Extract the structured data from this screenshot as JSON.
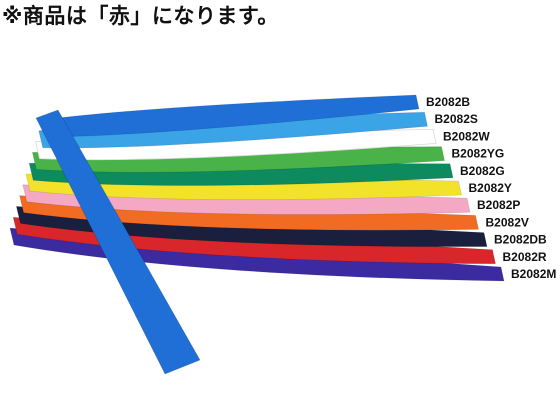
{
  "notice": "※商品は「赤」になります。",
  "bands": [
    {
      "code": "B2082B",
      "color": "#1f6fd6"
    },
    {
      "code": "B2082S",
      "color": "#3aa4e6"
    },
    {
      "code": "B2082W",
      "color": "#ffffff"
    },
    {
      "code": "B2082YG",
      "color": "#49b34a"
    },
    {
      "code": "B2082G",
      "color": "#0d8a5e"
    },
    {
      "code": "B2082Y",
      "color": "#f2e32a"
    },
    {
      "code": "B2082P",
      "color": "#f4a8c4"
    },
    {
      "code": "B2082V",
      "color": "#f26b22"
    },
    {
      "code": "B2082DB",
      "color": "#1a1f3d"
    },
    {
      "code": "B2082R",
      "color": "#d8262a"
    },
    {
      "code": "B2082M",
      "color": "#3b2aa0"
    }
  ]
}
